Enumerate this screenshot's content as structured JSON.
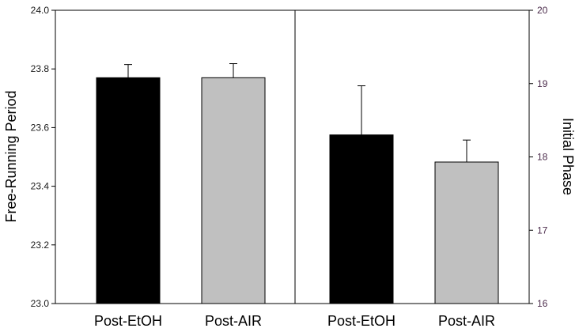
{
  "chart_data": [
    {
      "type": "bar",
      "panel": "left",
      "categories": [
        "Post-EtOH",
        "Post-AIR"
      ],
      "values": [
        23.77,
        23.77
      ],
      "errors": [
        0.045,
        0.048
      ],
      "colors": [
        "#000000",
        "#c0c0c0"
      ],
      "ylabel": "Free-Running Period",
      "ylim": [
        23.0,
        24.0
      ],
      "yticks": [
        "23.0",
        "23.2",
        "23.4",
        "23.6",
        "23.8",
        "24.0"
      ],
      "yaxis_side": "left"
    },
    {
      "type": "bar",
      "panel": "right",
      "categories": [
        "Post-EtOH",
        "Post-AIR"
      ],
      "values": [
        18.3,
        17.93
      ],
      "errors": [
        0.67,
        0.3
      ],
      "colors": [
        "#000000",
        "#c0c0c0"
      ],
      "ylabel": "Initial Phase",
      "ylim": [
        16,
        20
      ],
      "yticks": [
        "16",
        "17",
        "18",
        "19",
        "20"
      ],
      "yaxis_side": "right"
    }
  ]
}
